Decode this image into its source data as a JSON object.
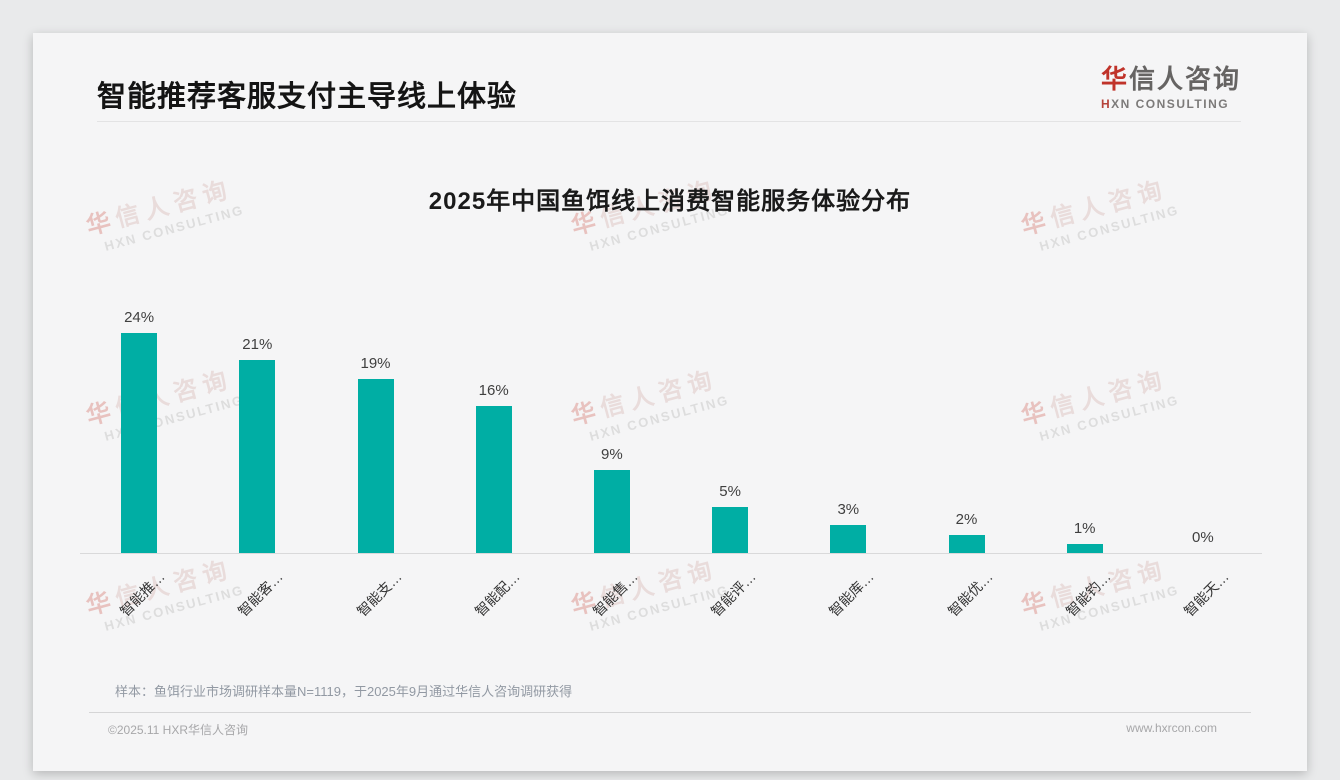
{
  "page": {
    "title": "智能推荐客服支付主导线上体验",
    "logo": {
      "cn_accent": "华",
      "cn_rest": "信人咨询",
      "en_first": "H",
      "en_rest": "XN CONSULTING"
    },
    "watermark": {
      "cn_accent": "华",
      "cn_rest": "信人咨询",
      "en": "HXN CONSULTING"
    },
    "footnote": "样本：鱼饵行业市场调研样本量N=1119，于2025年9月通过华信人咨询调研获得",
    "footer": {
      "left": "©2025.11 HXR华信人咨询",
      "right": "www.hxrcon.com"
    }
  },
  "chart_data": {
    "type": "bar",
    "title": "2025年中国鱼饵线上消费智能服务体验分布",
    "categories": [
      "智能推…",
      "智能客…",
      "智能支…",
      "智能配…",
      "智能售…",
      "智能评…",
      "智能库…",
      "智能优…",
      "智能钓…",
      "智能天…"
    ],
    "values": [
      24,
      21,
      19,
      16,
      9,
      5,
      3,
      2,
      1,
      0
    ],
    "value_labels": [
      "24%",
      "21%",
      "19%",
      "16%",
      "9%",
      "5%",
      "3%",
      "2%",
      "1%",
      "0%"
    ],
    "bar_color": "#00aea4",
    "xlabel": "",
    "ylabel": "",
    "ylim": [
      0,
      26
    ],
    "grid": false,
    "legend": "none",
    "x_label_rotation": -45
  }
}
